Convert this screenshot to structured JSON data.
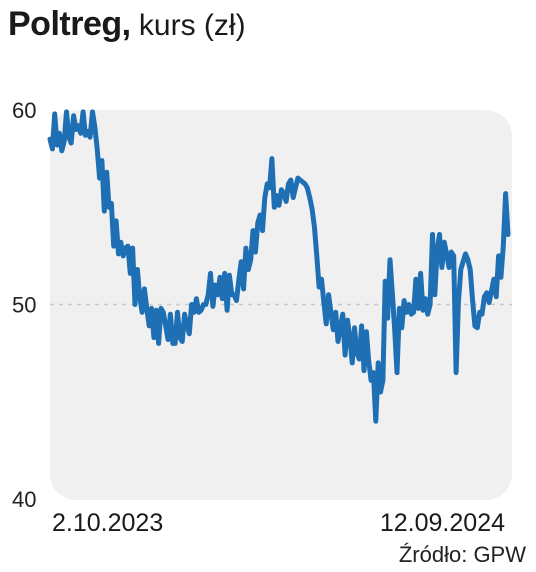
{
  "header": {
    "title_bold": "Poltreg,",
    "title_rest": " kurs (zł)"
  },
  "source": "Źródło: GPW",
  "colors": {
    "line": "#1f6fb5",
    "plot_bg": "#f0f0f0",
    "grid": "#c8c8c8"
  },
  "chart_data": {
    "type": "line",
    "title": "Poltreg, kurs (zł)",
    "xlabel": "",
    "ylabel": "",
    "ylim": [
      40,
      60
    ],
    "yticks": [
      40,
      50,
      60
    ],
    "x_tick_labels": [
      "2.10.2023",
      "12.09.2024"
    ],
    "x_range": [
      "2.10.2023",
      "12.09.2024"
    ],
    "grid": "dashed line at 50",
    "legend": "none",
    "series": [
      {
        "values": [
          58.5,
          58.0,
          59.8,
          58.2,
          58.8,
          57.9,
          58.4,
          59.9,
          58.6,
          58.3,
          59.7,
          59.0,
          59.2,
          58.8,
          59.9,
          58.7,
          58.9,
          58.6,
          59.9,
          59.1,
          58.0,
          56.5,
          57.4,
          54.8,
          56.8,
          55.0,
          55.2,
          53.0,
          54.3,
          52.6,
          53.2,
          52.5,
          52.9,
          53.0,
          51.6,
          52.9,
          50.0,
          51.8,
          50.4,
          49.6,
          50.8,
          49.8,
          48.9,
          49.8,
          48.3,
          49.7,
          48.0,
          49.8,
          49.6,
          48.9,
          48.2,
          49.5,
          48.0,
          48.0,
          49.6,
          48.3,
          48.1,
          49.5,
          48.9,
          48.5,
          50.0,
          49.6,
          50.3,
          49.6,
          49.7,
          50.0,
          50.0,
          50.5,
          51.6,
          49.9,
          51.0,
          50.5,
          51.4,
          50.3,
          51.6,
          49.7,
          51.5,
          50.5,
          50.5,
          50.2,
          51.3,
          52.2,
          50.8,
          52.9,
          51.8,
          52.3,
          53.8,
          52.7,
          54.2,
          54.6,
          53.8,
          55.5,
          56.2,
          56.0,
          57.5,
          55.0,
          55.6,
          55.1,
          55.9,
          55.7,
          55.3,
          56.2,
          56.4,
          55.5,
          56.0,
          56.5,
          56.4,
          56.3,
          56.2,
          56.0,
          55.5,
          54.9,
          54.0,
          52.5,
          50.9,
          51.3,
          50.1,
          49.0,
          50.5,
          49.6,
          48.7,
          49.6,
          48.1,
          48.8,
          49.5,
          47.4,
          49.2,
          48.3,
          47.0,
          48.8,
          47.5,
          47.2,
          48.9,
          46.6,
          48.6,
          47.1,
          46.1,
          46.5,
          44.0,
          47.0,
          45.5,
          46.1,
          51.2,
          49.3,
          52.3,
          50.6,
          48.7,
          46.5,
          49.8,
          48.8,
          50.2,
          49.6,
          50.0,
          49.5,
          49.6,
          51.3,
          49.8,
          51.6,
          49.7,
          50.3,
          49.5,
          50.0,
          53.6,
          50.5,
          52.8,
          53.6,
          51.9,
          53.2,
          52.6,
          51.9,
          52.7,
          52.5,
          46.5,
          50.1,
          51.8,
          52.2,
          52.6,
          52.3,
          51.8,
          50.2,
          48.9,
          48.8,
          49.6,
          49.5,
          50.4,
          50.6,
          50.1,
          50.7,
          51.3,
          50.4,
          52.5,
          51.4,
          53.0,
          55.7,
          53.6
        ]
      }
    ]
  }
}
